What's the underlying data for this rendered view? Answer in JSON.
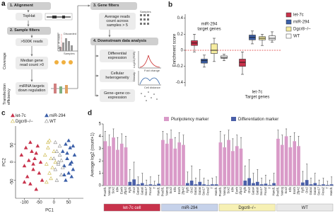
{
  "panel_a": {
    "label": "a",
    "steps": [
      {
        "title": "1. Alignment",
        "items": [
          "TopHat"
        ]
      },
      {
        "title": "2. Sample filters",
        "items": [
          ">500K reads",
          "Median gene read count >0",
          "miRNA targets down regulation"
        ],
        "side_labels": [
          "Coverage",
          "Transfection efficiency"
        ]
      },
      {
        "title": "3. Gene filters",
        "items": [
          "Average reads count across samples > 5"
        ]
      },
      {
        "title": "4. Downstream data analysis",
        "items": [
          "Differential expression",
          "Cellular heterogeneity",
          "Gene–gene co-expression"
        ]
      }
    ],
    "plot_labels": [
      "No. of reads",
      "Samples",
      "Discarded",
      "Samples",
      "Log10 (FDR)",
      "Fold change",
      "Density",
      "Cell distance"
    ]
  },
  "chart_data": [
    {
      "type": "box",
      "label": "b",
      "ylabel": "Enrichment score",
      "group_labels": [
        [
          "miR-294",
          "target genes"
        ],
        [
          "let-7c",
          "Target genes"
        ]
      ],
      "ylim": [
        -0.45,
        0.45
      ],
      "yticks": [
        -0.4,
        -0.2,
        0,
        0.2,
        0.4
      ],
      "reference_line": 0,
      "series": [
        {
          "name": "let-7c",
          "color": "#c8324b",
          "boxes": [
            {
              "whislo": -0.02,
              "q1": 0.06,
              "med": 0.09,
              "q3": 0.12,
              "whishi": 0.2
            },
            {
              "whislo": -0.3,
              "q1": -0.2,
              "med": -0.15,
              "q3": -0.11,
              "whishi": -0.02
            }
          ]
        },
        {
          "name": "miR-294",
          "color": "#3b5fa8",
          "boxes": [
            {
              "whislo": -0.21,
              "q1": -0.16,
              "med": -0.13,
              "q3": -0.11,
              "whishi": -0.06
            },
            {
              "whislo": 0.08,
              "q1": 0.13,
              "med": 0.16,
              "q3": 0.19,
              "whishi": 0.24
            }
          ]
        },
        {
          "name": "Dgcr8−/−",
          "color": "#f6eca0",
          "boxes": [
            {
              "whislo": -0.14,
              "q1": -0.04,
              "med": 0.0,
              "q3": 0.08,
              "whishi": 0.15
            },
            {
              "whislo": 0.06,
              "q1": 0.13,
              "med": 0.15,
              "q3": 0.17,
              "whishi": 0.2
            }
          ]
        },
        {
          "name": "WT",
          "color": "#ffffff",
          "boxes": [
            {
              "whislo": -0.13,
              "q1": -0.1,
              "med": -0.09,
              "q3": -0.07,
              "whishi": -0.05
            },
            {
              "whislo": 0.1,
              "q1": 0.13,
              "med": 0.15,
              "q3": 0.18,
              "whishi": 0.23
            }
          ]
        }
      ]
    },
    {
      "type": "scatter",
      "label": "c",
      "xlabel": "PC1",
      "ylabel": "PC2",
      "xlim": [
        -130,
        100
      ],
      "xticks": [
        -100,
        -50,
        0,
        50
      ],
      "ylim": [
        -100,
        100
      ],
      "yticks": [
        -50,
        0,
        50
      ],
      "series": [
        {
          "name": "let-7c",
          "color": "#c8324b",
          "filled": true,
          "x": [
            -110,
            -100,
            -95,
            -90,
            -85,
            -80,
            -75,
            -70,
            -65,
            -60,
            -55,
            -50,
            -45,
            -40,
            -100,
            -80,
            -70,
            -60
          ],
          "y": [
            20,
            -10,
            40,
            -40,
            5,
            -60,
            30,
            -20,
            10,
            -75,
            45,
            -30,
            0,
            -50,
            -55,
            55,
            -5,
            25
          ]
        },
        {
          "name": "miR-294",
          "color": "#3b5fa8",
          "filled": true,
          "x": [
            30,
            35,
            40,
            45,
            50,
            55,
            60,
            65,
            70,
            40,
            50,
            60,
            45,
            55,
            35,
            65
          ],
          "y": [
            30,
            -10,
            50,
            10,
            -30,
            40,
            0,
            -20,
            20,
            -50,
            60,
            -40,
            25,
            -5,
            -35,
            45
          ]
        },
        {
          "name": "Dgcr8−/−",
          "color": "#c9b440",
          "filled": false,
          "x": [
            -30,
            -25,
            -20,
            -15,
            -10,
            -5,
            0,
            -20,
            -10,
            5,
            -25,
            -15
          ],
          "y": [
            20,
            -5,
            40,
            -30,
            10,
            -15,
            30,
            55,
            -45,
            0,
            -55,
            60
          ]
        },
        {
          "name": "WT",
          "color": "#888888",
          "filled": false,
          "x": [
            0,
            5,
            10,
            15,
            20,
            25,
            10,
            20,
            5,
            15,
            25,
            30
          ],
          "y": [
            10,
            -20,
            30,
            -5,
            20,
            -35,
            -50,
            45,
            55,
            0,
            5,
            -15
          ]
        }
      ]
    },
    {
      "type": "bar",
      "label": "d",
      "ylabel": "Average log2 (count+1)",
      "ylim": [
        0,
        5
      ],
      "yticks": [
        0,
        1,
        2,
        3,
        4,
        5
      ],
      "groups": [
        {
          "name": "let-7c cell",
          "color": "#c8324b"
        },
        {
          "name": "miR-294",
          "color": "#c6d2ea"
        },
        {
          "name": "Dgcr8−/−",
          "color": "#f6f0b4"
        },
        {
          "name": "WT",
          "color": "#e8e8e8"
        }
      ],
      "series": [
        {
          "name": "Pluripotency marker",
          "color": "#d99ac8",
          "categories": [
            "Pou5f1",
            "Nanog",
            "Sox2",
            "Klf4",
            "Esrrb",
            "Zfp42"
          ],
          "values": [
            [
              3.6,
              3.2,
              3.9,
              2.9,
              3.4,
              3.1
            ],
            [
              3.7,
              3.4,
              3.8,
              3.0,
              3.5,
              3.3
            ],
            [
              3.5,
              3.1,
              3.7,
              2.8,
              3.2,
              3.0
            ],
            [
              3.8,
              3.3,
              4.0,
              3.1,
              3.6,
              3.2
            ]
          ],
          "errors": [
            [
              0.8,
              0.9,
              0.7,
              1.0,
              0.8,
              0.9
            ],
            [
              0.7,
              0.8,
              0.7,
              0.9,
              0.8,
              0.8
            ],
            [
              0.9,
              1.0,
              0.8,
              1.0,
              0.9,
              0.9
            ],
            [
              0.7,
              0.8,
              0.6,
              0.9,
              0.7,
              0.8
            ]
          ]
        },
        {
          "name": "Differentiation marker",
          "color": "#4a5fa8",
          "categories": [
            "Fgf5",
            "Otx2",
            "Gata4",
            "Gata6",
            "Sox17",
            "Foxa2",
            "T",
            "Hand1"
          ],
          "values": [
            [
              0.3,
              0.5,
              0.1,
              0.2,
              0.05,
              0.1,
              0.05,
              0.15
            ],
            [
              0.2,
              0.4,
              0.1,
              0.3,
              0.1,
              0.05,
              0.1,
              0.1
            ],
            [
              0.4,
              0.6,
              0.2,
              0.3,
              0.1,
              0.15,
              0.05,
              0.2
            ],
            [
              0.25,
              0.45,
              0.1,
              0.2,
              0.05,
              0.1,
              0.05,
              0.1
            ]
          ],
          "errors": [
            [
              1.0,
              1.4,
              0.6,
              0.8,
              0.4,
              0.6,
              0.3,
              0.7
            ],
            [
              0.9,
              1.2,
              0.5,
              1.0,
              0.5,
              0.4,
              0.5,
              0.6
            ],
            [
              1.2,
              1.5,
              0.8,
              1.0,
              0.5,
              0.7,
              0.4,
              0.8
            ],
            [
              0.9,
              1.3,
              0.5,
              0.8,
              0.4,
              0.5,
              0.3,
              0.6
            ]
          ]
        }
      ]
    }
  ]
}
